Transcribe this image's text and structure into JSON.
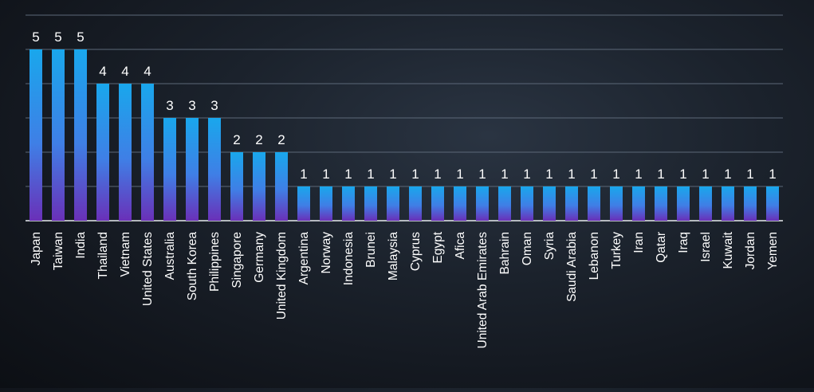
{
  "chart_data": {
    "type": "bar",
    "title": "",
    "xlabel": "",
    "ylabel": "",
    "ylim": [
      0,
      6
    ],
    "grid": true,
    "legend": "none",
    "colors": {
      "bar_top": "#19a7ec",
      "bar_mid": "#3f7fe6",
      "bar_bottom": "#6a30b8",
      "gridline": "#5c6878",
      "label": "#ffffff"
    },
    "categories": [
      "Japan",
      "Taiwan",
      "India",
      "Thailand",
      "Vietnam",
      "United States",
      "Australia",
      "South Korea",
      "Philippines",
      "Singapore",
      "Germany",
      "United Kingdom",
      "Argentina",
      "Norway",
      "Indonesia",
      "Brunei",
      "Malaysia",
      "Cyprus",
      "Egypt",
      "Afica",
      "United Arab Emirates",
      "Bahrain",
      "Oman",
      "Syria",
      "Saudi Arabia",
      "Lebanon",
      "Turkey",
      "Iran",
      "Qatar",
      "Iraq",
      "Israel",
      "Kuwait",
      "Jordan",
      "Yemen"
    ],
    "values": [
      5,
      5,
      5,
      4,
      4,
      4,
      3,
      3,
      3,
      2,
      2,
      2,
      1,
      1,
      1,
      1,
      1,
      1,
      1,
      1,
      1,
      1,
      1,
      1,
      1,
      1,
      1,
      1,
      1,
      1,
      1,
      1,
      1,
      1
    ]
  }
}
